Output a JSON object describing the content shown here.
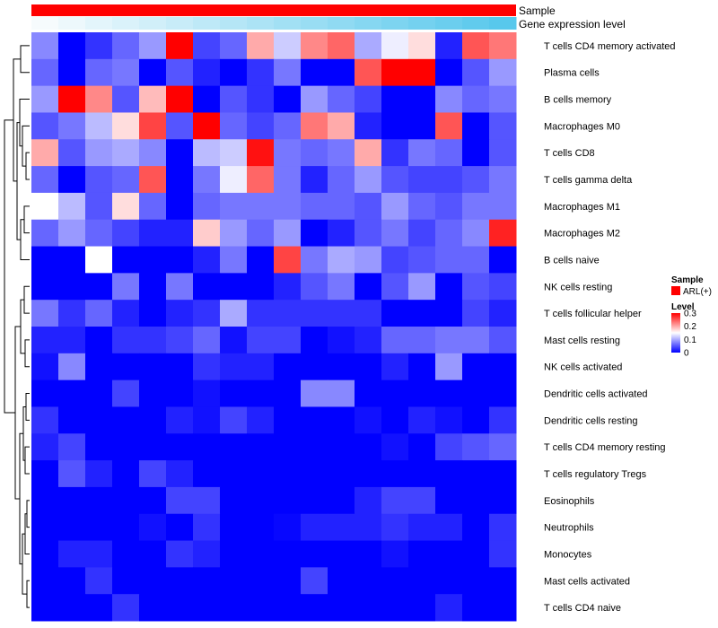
{
  "chart_data": {
    "type": "heatmap",
    "annotations": [
      {
        "name": "Sample",
        "color": "#ff0000"
      },
      {
        "name": "Gene expression level",
        "gradient": [
          "#f6fbfd",
          "#58c8ec"
        ]
      }
    ],
    "rows": [
      "T cells CD4 memory activated",
      "Plasma cells",
      "B cells memory",
      "Macrophages M0",
      "T cells CD8",
      "T cells gamma delta",
      "Macrophages M1",
      "Macrophages M2",
      "B cells naive",
      "NK cells resting",
      "T cells follicular helper",
      "Mast cells resting",
      "NK cells activated",
      "Dendritic cells activated",
      "Dendritic cells resting",
      "T cells CD4 memory resting",
      "T cells regulatory  Tregs",
      "Eosinophils",
      "Neutrophils",
      "Monocytes",
      "Mast cells activated",
      "T cells CD4 naive"
    ],
    "n_cols": 18,
    "values": [
      [
        0.08,
        0.0,
        0.03,
        0.06,
        0.09,
        0.33,
        0.04,
        0.06,
        0.2,
        0.12,
        0.22,
        0.24,
        0.1,
        0.14,
        0.17,
        0.02,
        0.25,
        0.23
      ],
      [
        0.06,
        0.0,
        0.06,
        0.07,
        0.0,
        0.05,
        0.02,
        0.0,
        0.03,
        0.07,
        0.0,
        0.0,
        0.25,
        0.33,
        0.32,
        0.0,
        0.05,
        0.09
      ],
      [
        0.09,
        0.32,
        0.22,
        0.05,
        0.19,
        0.32,
        0.0,
        0.05,
        0.03,
        0.0,
        0.09,
        0.06,
        0.04,
        0.0,
        0.0,
        0.08,
        0.06,
        0.07
      ],
      [
        0.05,
        0.07,
        0.11,
        0.17,
        0.26,
        0.05,
        0.32,
        0.06,
        0.04,
        0.06,
        0.23,
        0.2,
        0.02,
        0.0,
        0.0,
        0.25,
        0.0,
        0.05
      ],
      [
        0.2,
        0.05,
        0.09,
        0.1,
        0.08,
        0.0,
        0.11,
        0.12,
        0.29,
        0.07,
        0.06,
        0.07,
        0.2,
        0.03,
        0.07,
        0.06,
        0.0,
        0.05
      ],
      [
        0.06,
        0.0,
        0.05,
        0.06,
        0.25,
        0.0,
        0.07,
        0.14,
        0.24,
        0.07,
        0.02,
        0.06,
        0.09,
        0.05,
        0.04,
        0.04,
        0.05,
        0.07
      ],
      [
        0.15,
        0.11,
        0.05,
        0.17,
        0.06,
        0.0,
        0.06,
        0.07,
        0.07,
        0.07,
        0.06,
        0.06,
        0.05,
        0.09,
        0.06,
        0.05,
        0.07,
        0.07
      ],
      [
        0.06,
        0.09,
        0.06,
        0.04,
        0.02,
        0.02,
        0.18,
        0.09,
        0.06,
        0.09,
        0.0,
        0.02,
        0.05,
        0.07,
        0.04,
        0.06,
        0.08,
        0.28
      ],
      [
        0.0,
        0.0,
        0.15,
        0.0,
        0.0,
        0.0,
        0.02,
        0.07,
        0.0,
        0.26,
        0.07,
        0.1,
        0.09,
        0.04,
        0.05,
        0.06,
        0.06,
        0.0
      ],
      [
        0.0,
        0.0,
        0.0,
        0.07,
        0.0,
        0.07,
        0.0,
        0.0,
        0.0,
        0.02,
        0.05,
        0.07,
        0.0,
        0.05,
        0.09,
        0.0,
        0.05,
        0.04
      ],
      [
        0.07,
        0.03,
        0.06,
        0.02,
        0.0,
        0.02,
        0.03,
        0.1,
        0.03,
        0.03,
        0.03,
        0.03,
        0.03,
        0.0,
        0.0,
        0.0,
        0.04,
        0.02
      ],
      [
        0.02,
        0.02,
        0.0,
        0.03,
        0.03,
        0.04,
        0.06,
        0.01,
        0.04,
        0.04,
        0.0,
        0.01,
        0.02,
        0.06,
        0.06,
        0.07,
        0.07,
        0.05
      ],
      [
        0.01,
        0.08,
        0.0,
        0.0,
        0.0,
        0.0,
        0.03,
        0.02,
        0.02,
        0.0,
        0.0,
        0.0,
        0.0,
        0.02,
        0.0,
        0.09,
        0.0,
        0.0
      ],
      [
        0.0,
        0.0,
        0.0,
        0.04,
        0.0,
        0.0,
        0.01,
        0.0,
        0.0,
        0.0,
        0.08,
        0.08,
        0.0,
        0.0,
        0.0,
        0.0,
        0.0,
        0.0
      ],
      [
        0.03,
        0.0,
        0.0,
        0.0,
        0.0,
        0.02,
        0.01,
        0.04,
        0.02,
        0.0,
        0.0,
        0.0,
        0.01,
        0.0,
        0.02,
        0.01,
        0.0,
        0.03
      ],
      [
        0.02,
        0.04,
        0.0,
        0.0,
        0.0,
        0.0,
        0.0,
        0.0,
        0.0,
        0.0,
        0.0,
        0.0,
        0.0,
        0.01,
        0.0,
        0.04,
        0.05,
        0.06
      ],
      [
        0.0,
        0.05,
        0.02,
        0.0,
        0.04,
        0.02,
        0.0,
        0.0,
        0.0,
        0.0,
        0.0,
        0.0,
        0.0,
        0.0,
        0.0,
        0.0,
        0.0,
        0.0
      ],
      [
        0.0,
        0.0,
        0.0,
        0.0,
        0.0,
        0.04,
        0.04,
        0.0,
        0.0,
        0.0,
        0.0,
        0.0,
        0.02,
        0.04,
        0.04,
        0.0,
        0.0,
        0.0
      ],
      [
        0.0,
        0.0,
        0.0,
        0.0,
        0.01,
        0.0,
        0.03,
        0.0,
        0.0,
        0.004,
        0.02,
        0.02,
        0.02,
        0.03,
        0.02,
        0.02,
        0.0,
        0.03
      ],
      [
        0.0,
        0.02,
        0.02,
        0.0,
        0.0,
        0.03,
        0.02,
        0.0,
        0.0,
        0.0,
        0.0,
        0.0,
        0.0,
        0.01,
        0.0,
        0.0,
        0.0,
        0.03
      ],
      [
        0.0,
        0.0,
        0.03,
        0.0,
        0.0,
        0.0,
        0.0,
        0.0,
        0.0,
        0.0,
        0.04,
        0.0,
        0.0,
        0.0,
        0.0,
        0.0,
        0.0,
        0.0
      ],
      [
        0.0,
        0.0,
        0.0,
        0.03,
        0.0,
        0.0,
        0.0,
        0.0,
        0.0,
        0.0,
        0.0,
        0.0,
        0.0,
        0.0,
        0.0,
        0.02,
        0.0,
        0.0
      ]
    ],
    "expression_level": [
      0.0,
      0.05,
      0.1,
      0.15,
      0.2,
      0.25,
      0.3,
      0.35,
      0.4,
      0.45,
      0.5,
      0.55,
      0.6,
      0.65,
      0.7,
      0.75,
      0.8,
      0.85
    ],
    "color_scale": {
      "low": "#0000ff",
      "mid": "#ffffff",
      "high": "#ff0000",
      "min": 0,
      "mid_value": 0.15,
      "max": 0.3
    },
    "legend": {
      "sample_title": "Sample",
      "sample_entry": "ARL(+)",
      "sample_color": "#ff0000",
      "level_title": "Level",
      "level_ticks": [
        "0.3",
        "0.2",
        "0.1",
        "0"
      ],
      "level_tick_values": [
        0.3,
        0.2,
        0.1,
        0
      ]
    }
  }
}
